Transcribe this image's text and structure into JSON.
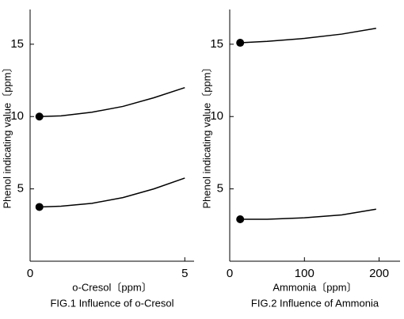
{
  "chart_data": [
    {
      "type": "line",
      "caption": "FIG.1 Influence of o-Cresol",
      "xlabel": "o-Cresol〔ppm〕",
      "ylabel": "Phenol indicating value〔ppm〕",
      "x": [
        0.3,
        1,
        2,
        3,
        4,
        5
      ],
      "series": [
        {
          "name": null,
          "color": "#000000",
          "values": [
            10.0,
            10.05,
            10.3,
            10.7,
            11.3,
            12.0
          ]
        },
        {
          "name": null,
          "color": "#000000",
          "values": [
            3.75,
            3.8,
            4.0,
            4.4,
            5.0,
            5.75
          ]
        }
      ],
      "xlim": [
        0,
        5.3
      ],
      "xticks": [
        0,
        5
      ],
      "ylim": [
        0,
        17.4
      ],
      "yticks": [
        5,
        10,
        15
      ],
      "markers": "start"
    },
    {
      "type": "line",
      "caption": "FIG.2 Influence of Ammonia",
      "xlabel": "Ammonia〔ppm〕",
      "ylabel": "Phenol indicating value〔ppm〕",
      "x": [
        14,
        50,
        100,
        150,
        196
      ],
      "series": [
        {
          "name": null,
          "color": "#000000",
          "values": [
            15.1,
            15.2,
            15.4,
            15.7,
            16.1
          ]
        },
        {
          "name": null,
          "color": "#000000",
          "values": [
            2.9,
            2.9,
            3.0,
            3.2,
            3.6
          ]
        }
      ],
      "xlim": [
        0,
        228
      ],
      "xticks": [
        0,
        100,
        200
      ],
      "ylim": [
        0,
        17.4
      ],
      "yticks": [
        5,
        10,
        15
      ],
      "markers": "start"
    }
  ]
}
